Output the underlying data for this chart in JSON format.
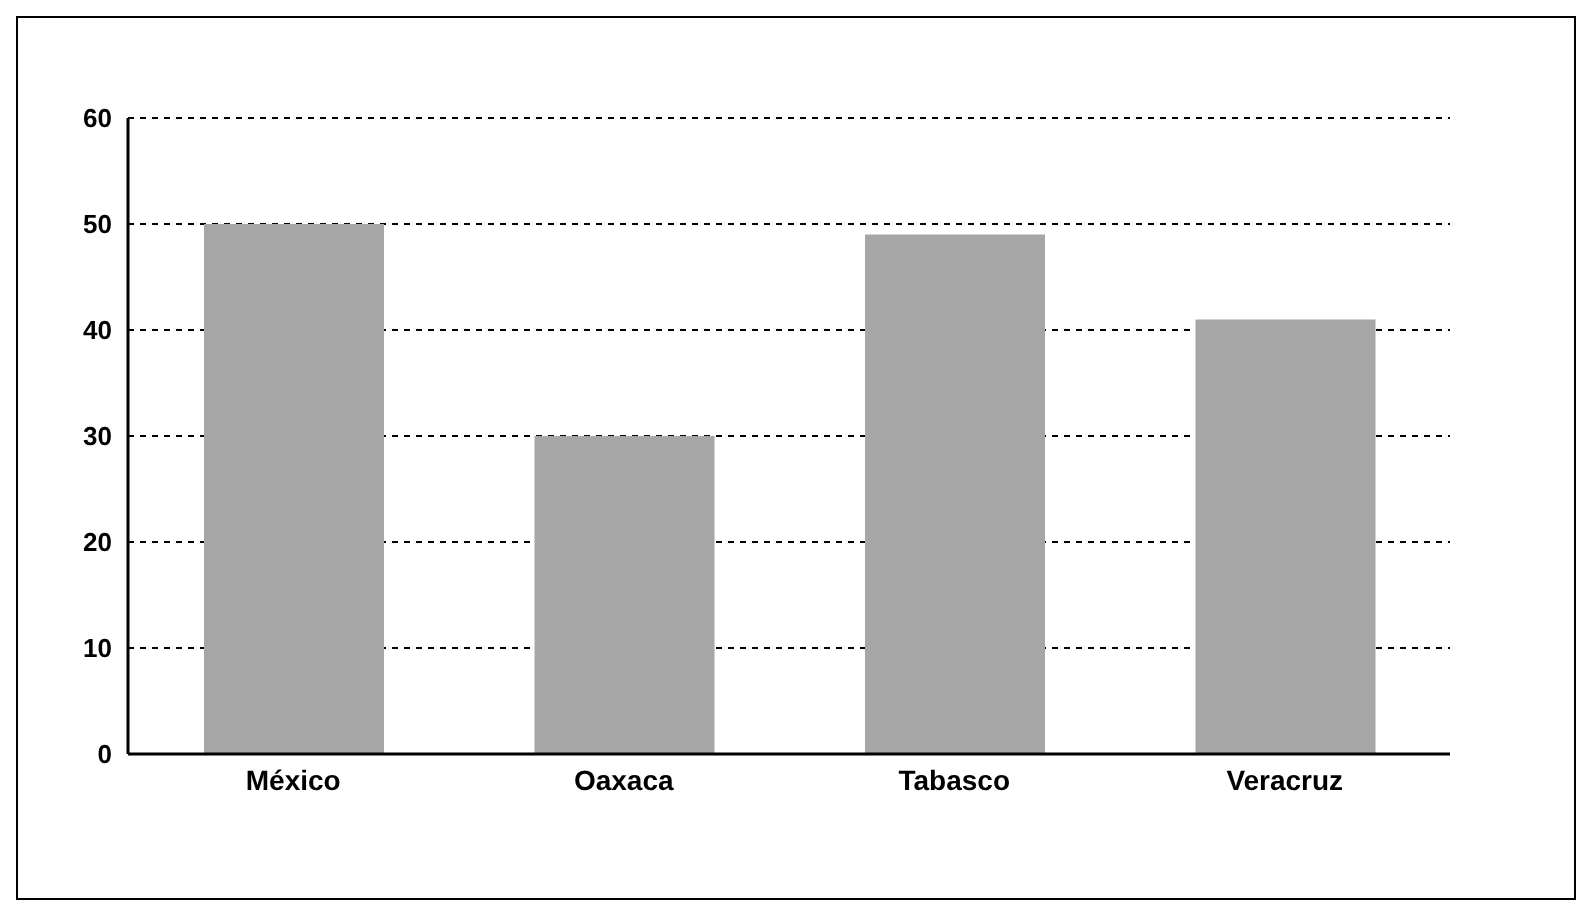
{
  "chart_data": {
    "type": "bar",
    "categories": [
      "México",
      "Oaxaca",
      "Tabasco",
      "Veracruz"
    ],
    "values": [
      50,
      30,
      49,
      41
    ],
    "color": "#a6a6a6",
    "ylim": [
      0,
      60
    ],
    "yticks": [
      0,
      10,
      20,
      30,
      40,
      50,
      60
    ],
    "grid": "y"
  }
}
